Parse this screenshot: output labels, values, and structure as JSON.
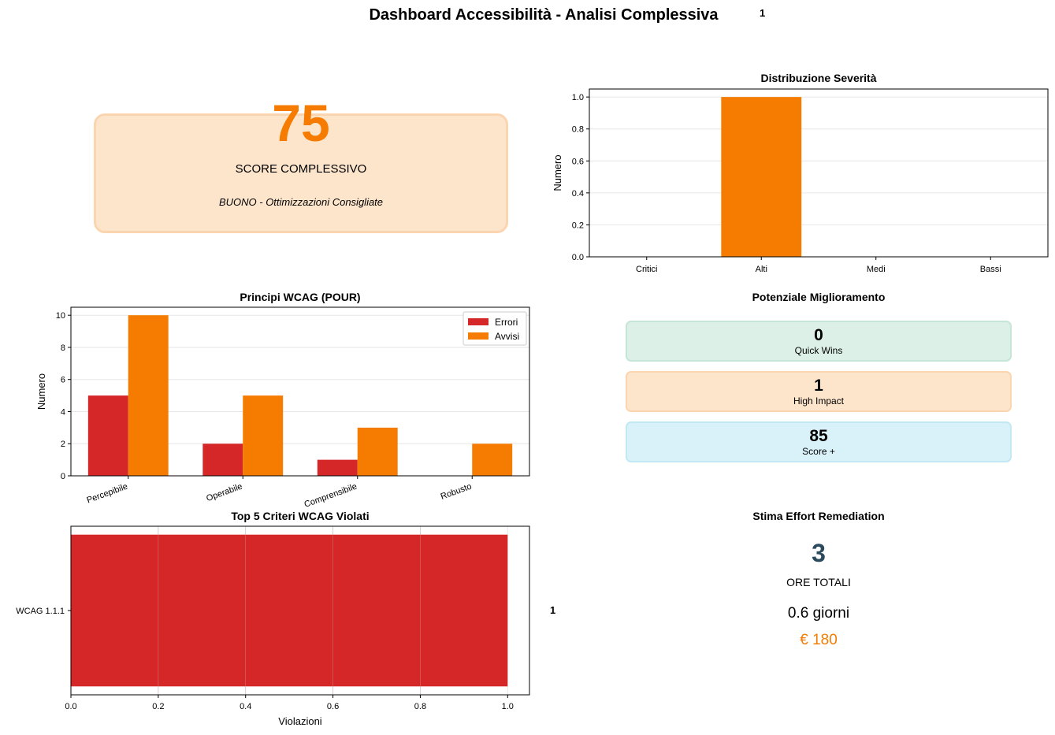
{
  "title": "Dashboard Accessibilità - Analisi Complessiva",
  "title_note": "1",
  "score": {
    "value": "75",
    "label": "SCORE COMPLESSIVO",
    "rating": "BUONO - Ottimizzazioni Consigliate",
    "color": "#f57c00"
  },
  "improvement": {
    "title": "Potenziale Miglioramento",
    "cards": [
      {
        "value": "0",
        "label": "Quick Wins",
        "bg": "#dcf0e7",
        "border": "#c5e6d6"
      },
      {
        "value": "1",
        "label": "High Impact",
        "bg": "#fde5cc",
        "border": "#fbd5b0"
      },
      {
        "value": "85",
        "label": "Score +",
        "bg": "#d9f2f9",
        "border": "#c2e8f3"
      }
    ]
  },
  "effort": {
    "title": "Stima Effort Remediation",
    "hours": "3",
    "hours_label": "ORE TOTALI",
    "days": "0.6 giorni",
    "cost": "€ 180"
  },
  "chart_data": [
    {
      "id": "severity",
      "type": "bar",
      "title": "Distribuzione Severità",
      "ylabel": "Numero",
      "xlabel": "",
      "categories": [
        "Critici",
        "Alti",
        "Medi",
        "Bassi"
      ],
      "values": [
        0,
        1,
        0,
        0
      ],
      "ylim": [
        0,
        1.05
      ],
      "yticks": [
        "0.0",
        "0.2",
        "0.4",
        "0.6",
        "0.8",
        "1.0"
      ],
      "grid": "y",
      "color": "#f57c00"
    },
    {
      "id": "pour",
      "type": "bar",
      "title": "Principi WCAG (POUR)",
      "ylabel": "Numero",
      "xlabel": "",
      "categories": [
        "Percepibile",
        "Operabile",
        "Comprensibile",
        "Robusto"
      ],
      "series": [
        {
          "name": "Errori",
          "values": [
            5,
            2,
            1,
            0
          ],
          "color": "#d62728"
        },
        {
          "name": "Avvisi",
          "values": [
            10,
            5,
            3,
            2
          ],
          "color": "#f57c00"
        }
      ],
      "ylim": [
        0,
        10.5
      ],
      "yticks": [
        "0",
        "2",
        "4",
        "6",
        "8",
        "10"
      ],
      "legend": "top-right",
      "grid": "y"
    },
    {
      "id": "top5",
      "type": "bar",
      "orientation": "horizontal",
      "title": "Top 5 Criteri WCAG Violati",
      "xlabel": "Violazioni",
      "ylabel": "",
      "categories": [
        "WCAG 1.1.1"
      ],
      "values": [
        1
      ],
      "xlim": [
        0,
        1.05
      ],
      "xticks": [
        "0.0",
        "0.2",
        "0.4",
        "0.6",
        "0.8",
        "1.0"
      ],
      "grid": "x",
      "color": "#d62728",
      "value_label": "1"
    }
  ]
}
